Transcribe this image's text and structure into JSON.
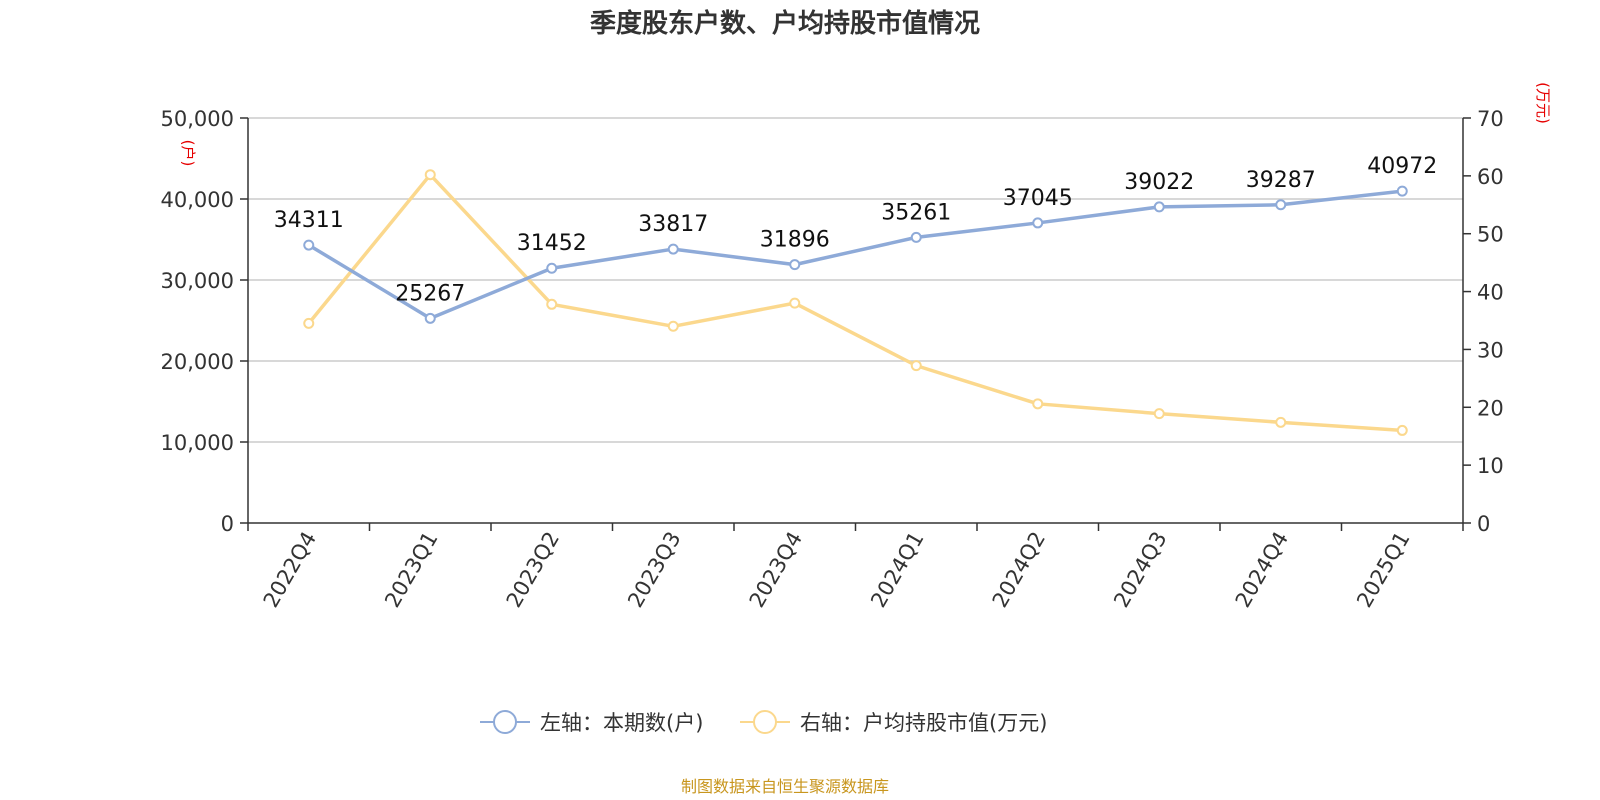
{
  "chart_data": {
    "type": "line",
    "title": "季度股东户数、户均持股市值情况",
    "categories": [
      "2022Q4",
      "2023Q1",
      "2023Q2",
      "2023Q3",
      "2023Q4",
      "2024Q1",
      "2024Q2",
      "2024Q3",
      "2024Q4",
      "2025Q1"
    ],
    "left_axis": {
      "unit": "(户)",
      "ylim": [
        0,
        50000
      ],
      "ticks": [
        "0",
        "10,000",
        "20,000",
        "30,000",
        "40,000",
        "50,000"
      ],
      "tick_values": [
        0,
        10000,
        20000,
        30000,
        40000,
        50000
      ]
    },
    "right_axis": {
      "unit": "(万元)",
      "ylim": [
        0,
        70
      ],
      "ticks": [
        "0",
        "10",
        "20",
        "30",
        "40",
        "50",
        "60",
        "70"
      ],
      "tick_values": [
        0,
        10,
        20,
        30,
        40,
        50,
        60,
        70
      ]
    },
    "series": [
      {
        "name": "左轴：本期数(户)",
        "axis": "left",
        "color": "#8eaad8",
        "show_labels": true,
        "values": [
          34311,
          25267,
          31452,
          33817,
          31896,
          35261,
          37045,
          39022,
          39287,
          40972
        ]
      },
      {
        "name": "右轴：户均持股市值(万元)",
        "axis": "right",
        "color": "#fbd88d",
        "show_labels": false,
        "values": [
          34.5,
          60.2,
          37.8,
          34.0,
          38.0,
          27.2,
          20.6,
          18.9,
          17.4,
          16.0
        ]
      }
    ],
    "legend_position": "bottom-center",
    "grid": true
  },
  "source": "制图数据来自恒生聚源数据库"
}
